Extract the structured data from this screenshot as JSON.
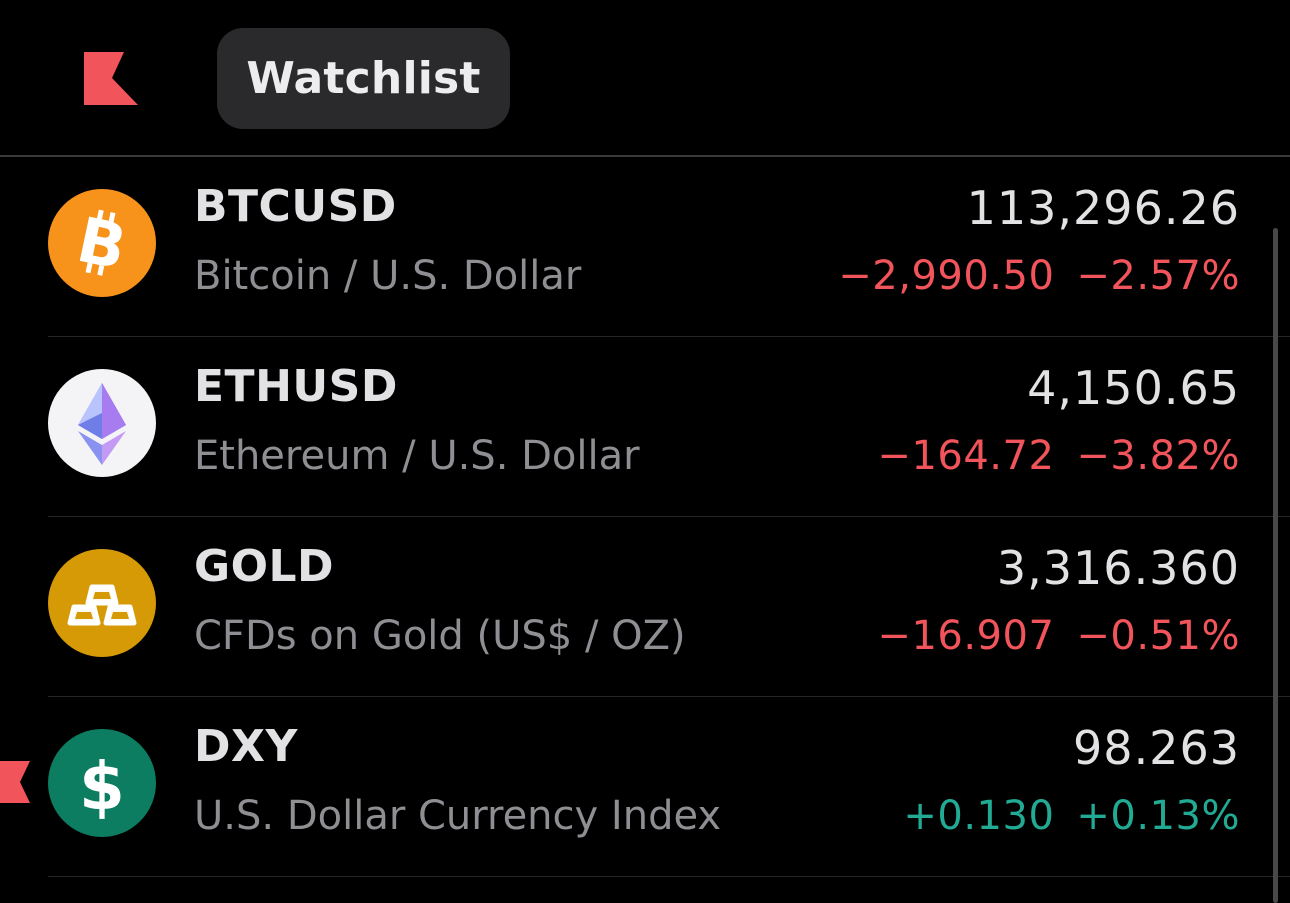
{
  "header": {
    "logo": "flag-logo-icon",
    "title": "Watchlist"
  },
  "colors": {
    "negative": "#f2545b",
    "positive": "#22ab94",
    "accent": "#f2545b"
  },
  "watchlist": [
    {
      "symbol": "BTCUSD",
      "description": "Bitcoin / U.S. Dollar",
      "price": "113,296.26",
      "change": "−2,990.50",
      "change_pct": "−2.57%",
      "direction": "down",
      "icon": "bitcoin-icon",
      "icon_color": "#f7931a"
    },
    {
      "symbol": "ETHUSD",
      "description": "Ethereum / U.S. Dollar",
      "price": "4,150.65",
      "change": "−164.72",
      "change_pct": "−3.82%",
      "direction": "down",
      "icon": "ethereum-icon",
      "icon_color": "#f4f4f6"
    },
    {
      "symbol": "GOLD",
      "description": "CFDs on Gold (US$ / OZ)",
      "price": "3,316.360",
      "change": "−16.907",
      "change_pct": "−0.51%",
      "direction": "down",
      "icon": "gold-bars-icon",
      "icon_color": "#d69a06"
    },
    {
      "symbol": "DXY",
      "description": "U.S. Dollar Currency Index",
      "price": "98.263",
      "change": "+0.130",
      "change_pct": "+0.13%",
      "direction": "up",
      "icon": "dollar-sign-icon",
      "icon_color": "#0c7d61"
    }
  ]
}
